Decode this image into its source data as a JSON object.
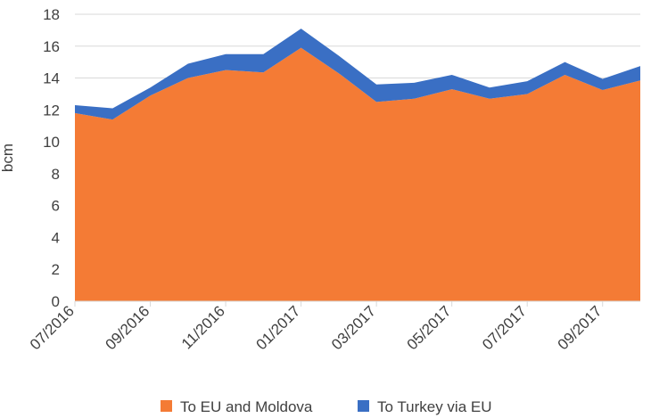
{
  "chart_data": {
    "type": "area",
    "stacked": true,
    "ylabel": "bcm",
    "ylim": [
      0,
      18
    ],
    "yticks": [
      0,
      2,
      4,
      6,
      8,
      10,
      12,
      14,
      16,
      18
    ],
    "x": [
      "07/2016",
      "08/2016",
      "09/2016",
      "10/2016",
      "11/2016",
      "12/2016",
      "01/2017",
      "02/2017",
      "03/2017",
      "04/2017",
      "05/2017",
      "06/2017",
      "07/2017",
      "08/2017",
      "09/2017",
      "10/2017"
    ],
    "xtick_labels": [
      "07/2016",
      "09/2016",
      "11/2016",
      "01/2017",
      "03/2017",
      "05/2017",
      "07/2017",
      "09/2017"
    ],
    "grid": true,
    "legend_position": "bottom",
    "series": [
      {
        "name": "To EU and Moldova",
        "color": "#f47b35",
        "values": [
          11.8,
          11.4,
          12.9,
          14.0,
          14.5,
          14.35,
          15.9,
          14.3,
          12.5,
          12.7,
          13.3,
          12.7,
          13.0,
          14.2,
          13.25,
          13.85
        ]
      },
      {
        "name": "To Turkey via EU",
        "color": "#3a6fc4",
        "values": [
          0.5,
          0.7,
          0.5,
          0.9,
          1.0,
          1.15,
          1.2,
          1.1,
          1.1,
          1.0,
          0.9,
          0.7,
          0.8,
          0.8,
          0.7,
          0.9
        ]
      }
    ]
  }
}
